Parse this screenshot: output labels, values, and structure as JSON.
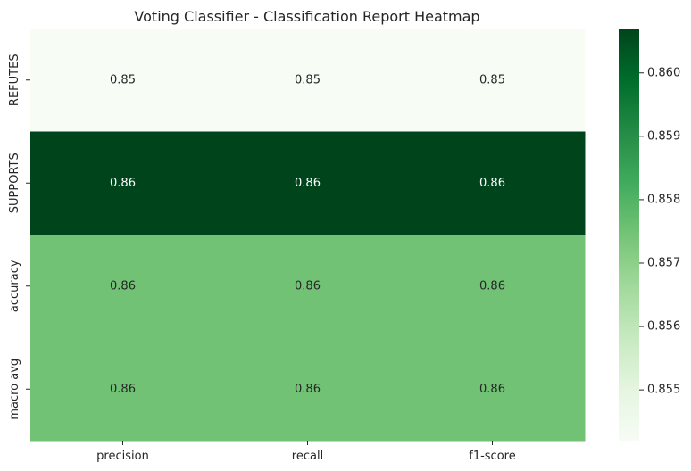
{
  "chart_data": {
    "type": "heatmap",
    "title": "Voting Classifier - Classification Report Heatmap",
    "xlabel": "",
    "ylabel": "",
    "x_categories": [
      "precision",
      "recall",
      "f1-score"
    ],
    "y_categories": [
      "REFUTES",
      "SUPPORTS",
      "accuracy",
      "macro avg"
    ],
    "values": [
      [
        0.8542,
        0.8542,
        0.8542
      ],
      [
        0.8607,
        0.8607,
        0.8607
      ],
      [
        0.8575,
        0.8575,
        0.8575
      ],
      [
        0.8575,
        0.8575,
        0.8575
      ]
    ],
    "annotations": [
      [
        "0.85",
        "0.85",
        "0.85"
      ],
      [
        "0.86",
        "0.86",
        "0.86"
      ],
      [
        "0.86",
        "0.86",
        "0.86"
      ],
      [
        "0.86",
        "0.86",
        "0.86"
      ]
    ],
    "colormap": "Greens",
    "color_range": [
      0.8542,
      0.8607
    ],
    "colorbar_ticks": [
      0.855,
      0.856,
      0.857,
      0.858,
      0.859,
      0.86
    ],
    "colorbar_tick_labels": [
      "0.855",
      "0.856",
      "0.857",
      "0.858",
      "0.859",
      "0.860"
    ],
    "grid": false,
    "legend": "colorbar-right"
  }
}
